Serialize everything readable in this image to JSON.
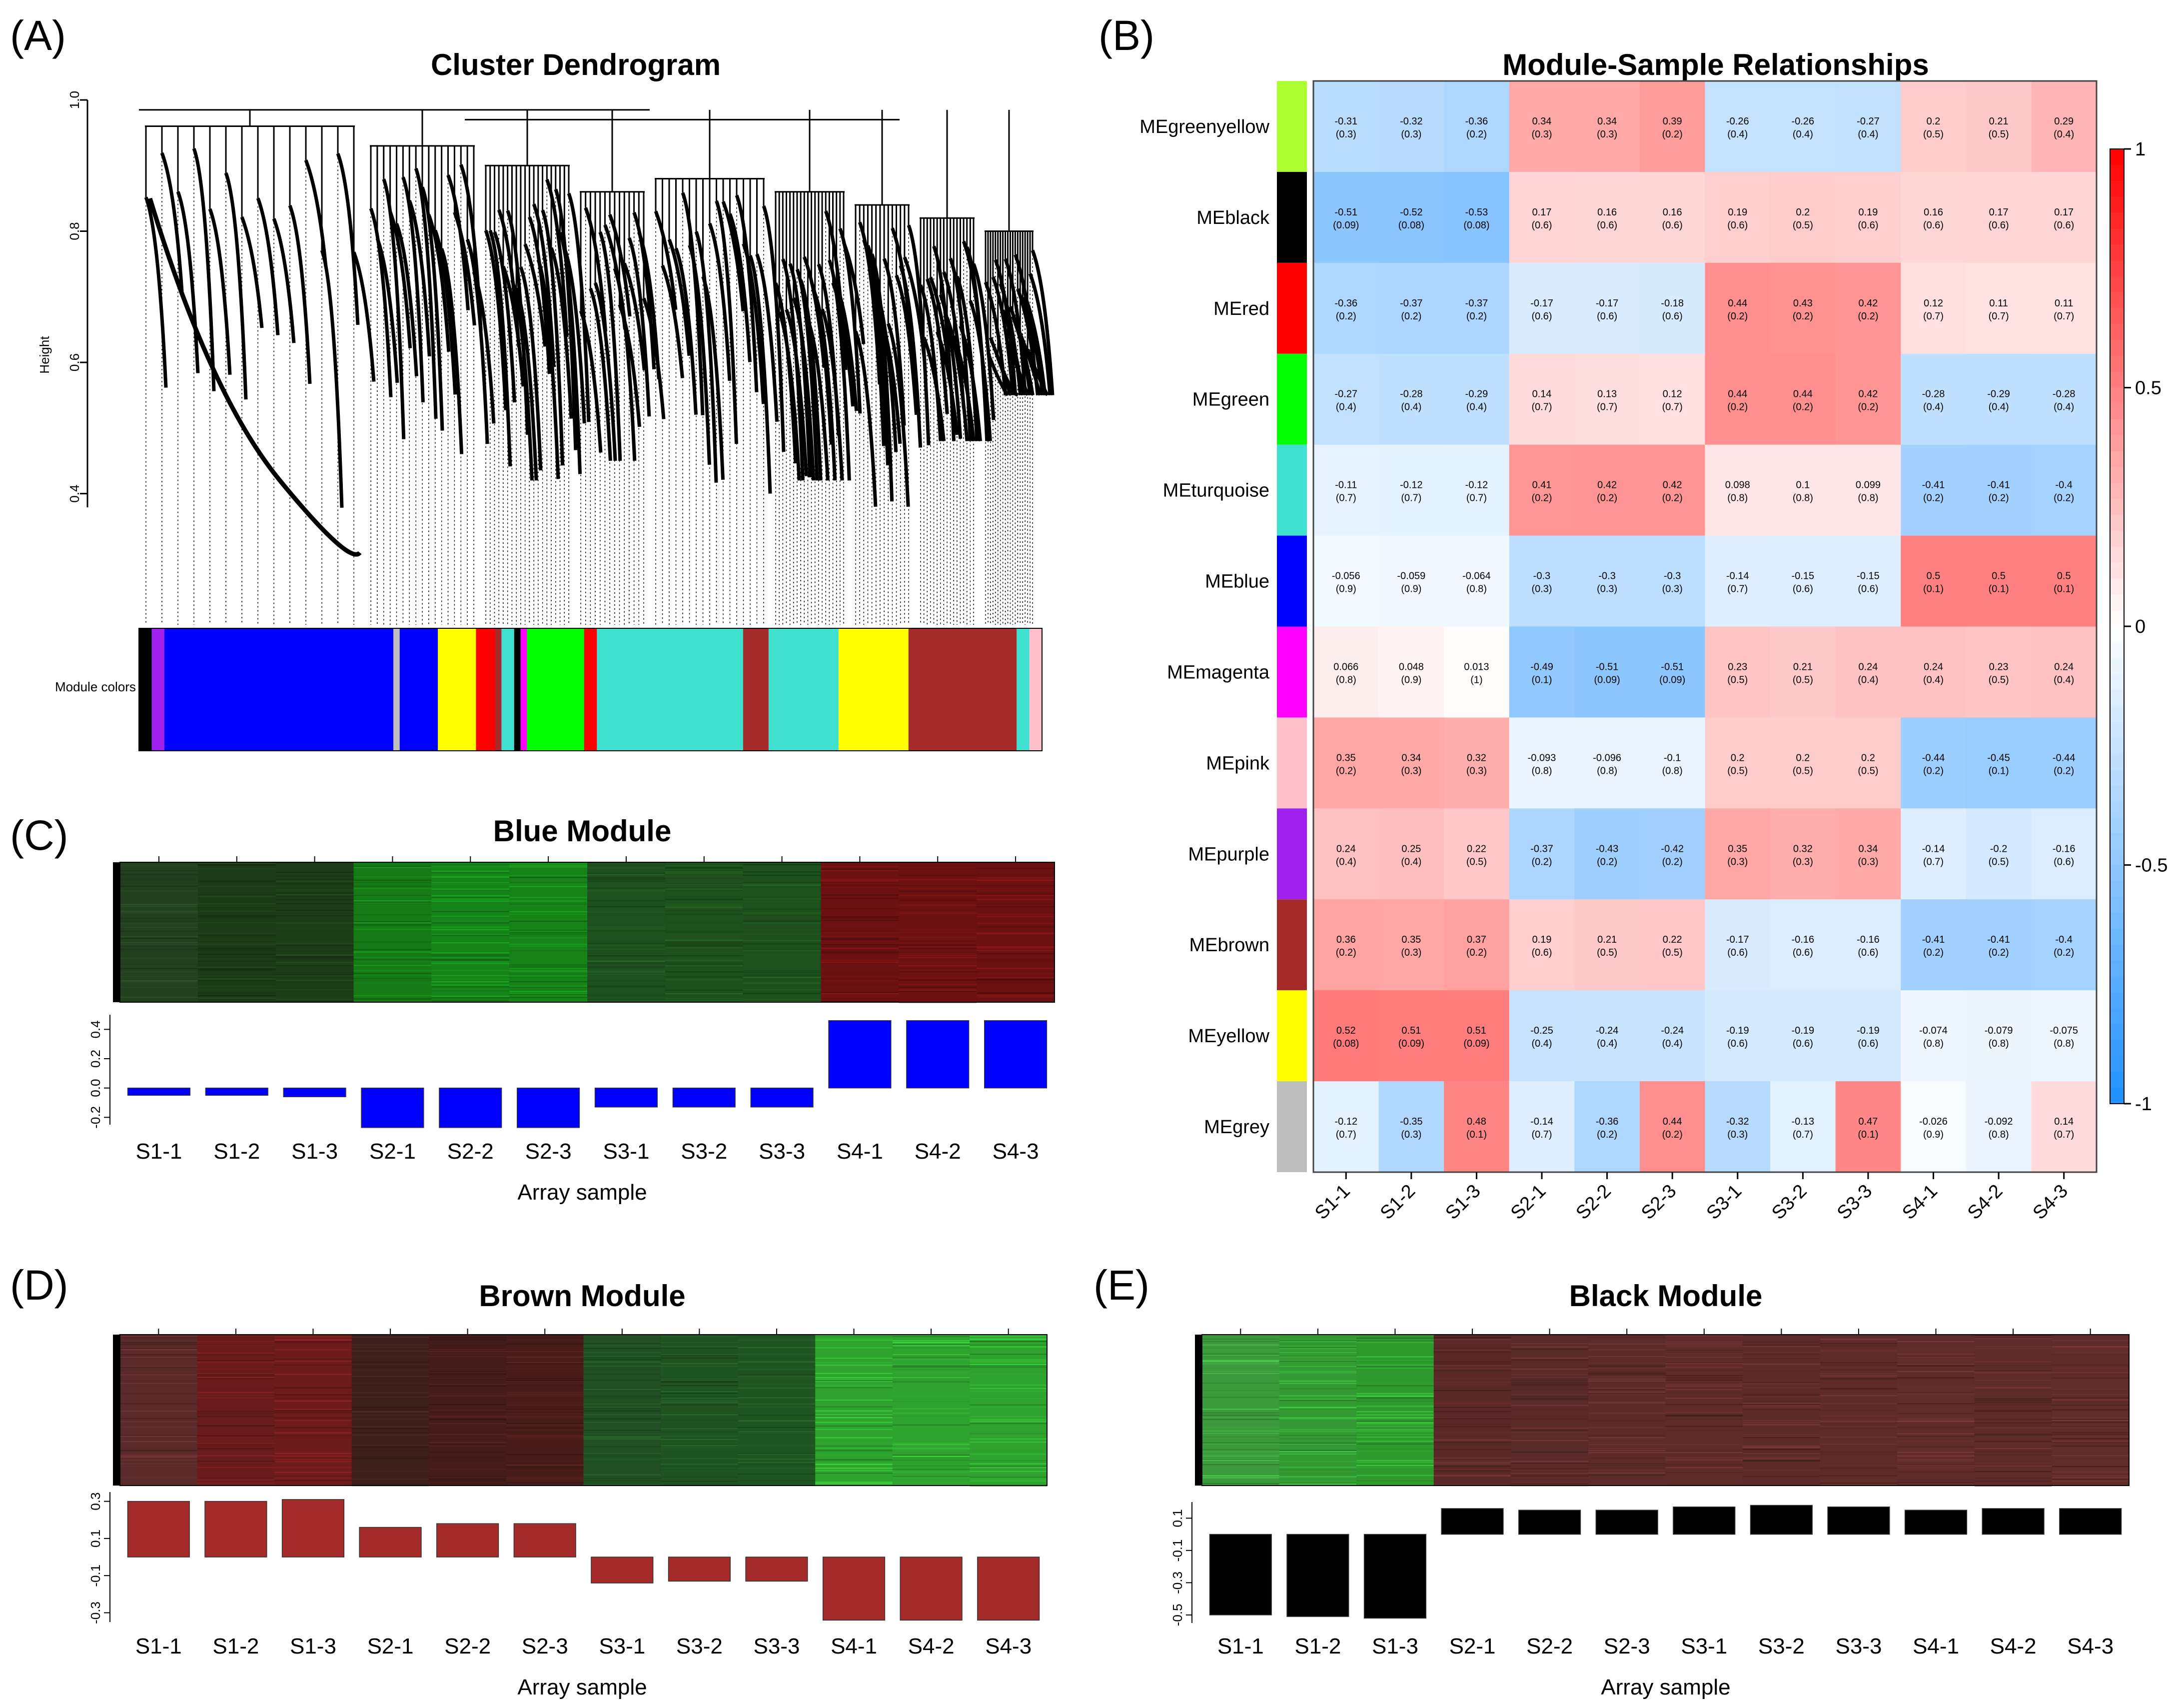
{
  "panel_labels": [
    "(A)",
    "(B)",
    "(C)",
    "(D)",
    "(E)"
  ],
  "chart_data": [
    {
      "id": "A",
      "type": "dendrogram",
      "title": "Cluster Dendrogram",
      "ylabel": "Height",
      "ylim": [
        0.2,
        1.0
      ],
      "yticks": [
        "0.4",
        "0.6",
        "0.8",
        "1.0"
      ],
      "colorbar_label": "Module colors",
      "module_color_strip": [
        {
          "color": "#000000",
          "weight": 2
        },
        {
          "color": "#a020f0",
          "weight": 2
        },
        {
          "color": "#0000ff",
          "weight": 36
        },
        {
          "color": "#bebebe",
          "weight": 1
        },
        {
          "color": "#0000ff",
          "weight": 6
        },
        {
          "color": "#ffff00",
          "weight": 6
        },
        {
          "color": "#ff0000",
          "weight": 3
        },
        {
          "color": "#a52a2a",
          "weight": 1
        },
        {
          "color": "#40e0d0",
          "weight": 2
        },
        {
          "color": "#000000",
          "weight": 1
        },
        {
          "color": "#ff00ff",
          "weight": 1
        },
        {
          "color": "#00ff00",
          "weight": 9
        },
        {
          "color": "#ff0000",
          "weight": 2
        },
        {
          "color": "#40e0d0",
          "weight": 23
        },
        {
          "color": "#a52a2a",
          "weight": 4
        },
        {
          "color": "#40e0d0",
          "weight": 11
        },
        {
          "color": "#ffff00",
          "weight": 11
        },
        {
          "color": "#a52a2a",
          "weight": 17
        },
        {
          "color": "#40e0d0",
          "weight": 2
        },
        {
          "color": "#ffc0cb",
          "weight": 2
        }
      ]
    },
    {
      "id": "B",
      "type": "heatmap",
      "title": "Module-Sample Relationships",
      "rows": [
        "MEgreenyellow",
        "MEblack",
        "MEred",
        "MEgreen",
        "MEturquoise",
        "MEblue",
        "MEmagenta",
        "MEpink",
        "MEpurple",
        "MEbrown",
        "MEyellow",
        "MEgrey"
      ],
      "row_colors": [
        "#adff2f",
        "#000000",
        "#ff0000",
        "#00ff00",
        "#40e0d0",
        "#0000ff",
        "#ff00ff",
        "#ffc0cb",
        "#a020f0",
        "#a52a2a",
        "#ffff00",
        "#bebebe"
      ],
      "columns": [
        "S1-1",
        "S1-2",
        "S1-3",
        "S2-1",
        "S2-2",
        "S2-3",
        "S3-1",
        "S3-2",
        "S3-3",
        "S4-1",
        "S4-2",
        "S4-3"
      ],
      "values": [
        [
          -0.31,
          -0.32,
          -0.36,
          0.34,
          0.34,
          0.39,
          -0.26,
          -0.26,
          -0.27,
          0.2,
          0.21,
          0.29
        ],
        [
          -0.51,
          -0.52,
          -0.53,
          0.17,
          0.16,
          0.16,
          0.19,
          0.2,
          0.19,
          0.16,
          0.17,
          0.17
        ],
        [
          -0.36,
          -0.37,
          -0.37,
          -0.17,
          -0.17,
          -0.18,
          0.44,
          0.43,
          0.42,
          0.12,
          0.11,
          0.11
        ],
        [
          -0.27,
          -0.28,
          -0.29,
          0.14,
          0.13,
          0.12,
          0.44,
          0.44,
          0.42,
          -0.28,
          -0.29,
          -0.28
        ],
        [
          -0.11,
          -0.12,
          -0.12,
          0.41,
          0.42,
          0.42,
          0.098,
          0.1,
          0.099,
          -0.41,
          -0.41,
          -0.4
        ],
        [
          -0.056,
          -0.059,
          -0.064,
          -0.3,
          -0.3,
          -0.3,
          -0.14,
          -0.15,
          -0.15,
          0.5,
          0.5,
          0.5
        ],
        [
          0.066,
          0.048,
          0.013,
          -0.49,
          -0.51,
          -0.51,
          0.23,
          0.21,
          0.24,
          0.24,
          0.23,
          0.24
        ],
        [
          0.35,
          0.34,
          0.32,
          -0.093,
          -0.096,
          -0.1,
          0.2,
          0.2,
          0.2,
          -0.44,
          -0.45,
          -0.44
        ],
        [
          0.24,
          0.25,
          0.22,
          -0.37,
          -0.43,
          -0.42,
          0.35,
          0.32,
          0.34,
          -0.14,
          -0.2,
          -0.16
        ],
        [
          0.36,
          0.35,
          0.37,
          0.19,
          0.21,
          0.22,
          -0.17,
          -0.16,
          -0.16,
          -0.41,
          -0.41,
          -0.4
        ],
        [
          0.52,
          0.51,
          0.51,
          -0.25,
          -0.24,
          -0.24,
          -0.19,
          -0.19,
          -0.19,
          -0.074,
          -0.079,
          -0.075
        ],
        [
          -0.12,
          -0.35,
          0.48,
          -0.14,
          -0.36,
          0.44,
          -0.32,
          -0.13,
          0.47,
          -0.026,
          -0.092,
          0.14
        ]
      ],
      "labels": [
        [
          "-0.31",
          "-0.32",
          "-0.36",
          "0.34",
          "0.34",
          "0.39",
          "-0.26",
          "-0.26",
          "-0.27",
          "0.2",
          "0.21",
          "0.29"
        ],
        [
          "-0.51",
          "-0.52",
          "-0.53",
          "0.17",
          "0.16",
          "0.16",
          "0.19",
          "0.2",
          "0.19",
          "0.16",
          "0.17",
          "0.17"
        ],
        [
          "-0.36",
          "-0.37",
          "-0.37",
          "-0.17",
          "-0.17",
          "-0.18",
          "0.44",
          "0.43",
          "0.42",
          "0.12",
          "0.11",
          "0.11"
        ],
        [
          "-0.27",
          "-0.28",
          "-0.29",
          "0.14",
          "0.13",
          "0.12",
          "0.44",
          "0.44",
          "0.42",
          "-0.28",
          "-0.29",
          "-0.28"
        ],
        [
          "-0.11",
          "-0.12",
          "-0.12",
          "0.41",
          "0.42",
          "0.42",
          "0.098",
          "0.1",
          "0.099",
          "-0.41",
          "-0.41",
          "-0.4"
        ],
        [
          "-0.056",
          "-0.059",
          "-0.064",
          "-0.3",
          "-0.3",
          "-0.3",
          "-0.14",
          "-0.15",
          "-0.15",
          "0.5",
          "0.5",
          "0.5"
        ],
        [
          "0.066",
          "0.048",
          "0.013",
          "-0.49",
          "-0.51",
          "-0.51",
          "0.23",
          "0.21",
          "0.24",
          "0.24",
          "0.23",
          "0.24"
        ],
        [
          "0.35",
          "0.34",
          "0.32",
          "-0.093",
          "-0.096",
          "-0.1",
          "0.2",
          "0.2",
          "0.2",
          "-0.44",
          "-0.45",
          "-0.44"
        ],
        [
          "0.24",
          "0.25",
          "0.22",
          "-0.37",
          "-0.43",
          "-0.42",
          "0.35",
          "0.32",
          "0.34",
          "-0.14",
          "-0.2",
          "-0.16"
        ],
        [
          "0.36",
          "0.35",
          "0.37",
          "0.19",
          "0.21",
          "0.22",
          "-0.17",
          "-0.16",
          "-0.16",
          "-0.41",
          "-0.41",
          "-0.4"
        ],
        [
          "0.52",
          "0.51",
          "0.51",
          "-0.25",
          "-0.24",
          "-0.24",
          "-0.19",
          "-0.19",
          "-0.19",
          "-0.074",
          "-0.079",
          "-0.075"
        ],
        [
          "-0.12",
          "-0.35",
          "0.48",
          "-0.14",
          "-0.36",
          "0.44",
          "-0.32",
          "-0.13",
          "0.47",
          "-0.026",
          "-0.092",
          "0.14"
        ]
      ],
      "pvalues": [
        [
          "(0.3)",
          "(0.3)",
          "(0.2)",
          "(0.3)",
          "(0.3)",
          "(0.2)",
          "(0.4)",
          "(0.4)",
          "(0.4)",
          "(0.5)",
          "(0.5)",
          "(0.4)"
        ],
        [
          "(0.09)",
          "(0.08)",
          "(0.08)",
          "(0.6)",
          "(0.6)",
          "(0.6)",
          "(0.6)",
          "(0.5)",
          "(0.6)",
          "(0.6)",
          "(0.6)",
          "(0.6)"
        ],
        [
          "(0.2)",
          "(0.2)",
          "(0.2)",
          "(0.6)",
          "(0.6)",
          "(0.6)",
          "(0.2)",
          "(0.2)",
          "(0.2)",
          "(0.7)",
          "(0.7)",
          "(0.7)"
        ],
        [
          "(0.4)",
          "(0.4)",
          "(0.4)",
          "(0.7)",
          "(0.7)",
          "(0.7)",
          "(0.2)",
          "(0.2)",
          "(0.2)",
          "(0.4)",
          "(0.4)",
          "(0.4)"
        ],
        [
          "(0.7)",
          "(0.7)",
          "(0.7)",
          "(0.2)",
          "(0.2)",
          "(0.2)",
          "(0.8)",
          "(0.8)",
          "(0.8)",
          "(0.2)",
          "(0.2)",
          "(0.2)"
        ],
        [
          "(0.9)",
          "(0.9)",
          "(0.8)",
          "(0.3)",
          "(0.3)",
          "(0.3)",
          "(0.7)",
          "(0.6)",
          "(0.6)",
          "(0.1)",
          "(0.1)",
          "(0.1)"
        ],
        [
          "(0.8)",
          "(0.9)",
          "(1)",
          "(0.1)",
          "(0.09)",
          "(0.09)",
          "(0.5)",
          "(0.5)",
          "(0.4)",
          "(0.4)",
          "(0.5)",
          "(0.4)"
        ],
        [
          "(0.2)",
          "(0.3)",
          "(0.3)",
          "(0.8)",
          "(0.8)",
          "(0.8)",
          "(0.5)",
          "(0.5)",
          "(0.5)",
          "(0.2)",
          "(0.1)",
          "(0.2)"
        ],
        [
          "(0.4)",
          "(0.4)",
          "(0.5)",
          "(0.2)",
          "(0.2)",
          "(0.2)",
          "(0.3)",
          "(0.3)",
          "(0.3)",
          "(0.7)",
          "(0.5)",
          "(0.6)"
        ],
        [
          "(0.2)",
          "(0.3)",
          "(0.2)",
          "(0.6)",
          "(0.5)",
          "(0.5)",
          "(0.6)",
          "(0.6)",
          "(0.6)",
          "(0.2)",
          "(0.2)",
          "(0.2)"
        ],
        [
          "(0.08)",
          "(0.09)",
          "(0.09)",
          "(0.4)",
          "(0.4)",
          "(0.4)",
          "(0.6)",
          "(0.6)",
          "(0.6)",
          "(0.8)",
          "(0.8)",
          "(0.8)"
        ],
        [
          "(0.7)",
          "(0.3)",
          "(0.1)",
          "(0.7)",
          "(0.2)",
          "(0.2)",
          "(0.3)",
          "(0.7)",
          "(0.1)",
          "(0.9)",
          "(0.8)",
          "(0.7)"
        ]
      ],
      "colorscale": {
        "min": -1,
        "max": 1,
        "low": "#1e90ff",
        "mid": "#ffffff",
        "high": "#ff0000"
      },
      "colorbar_ticks": [
        "1",
        "0.5",
        "0",
        "-0.5",
        "-1"
      ]
    },
    {
      "id": "C",
      "type": "bar",
      "title": "Blue Module",
      "xlabel": "Array sample",
      "categories": [
        "S1-1",
        "S1-2",
        "S1-3",
        "S2-1",
        "S2-2",
        "S2-3",
        "S3-1",
        "S3-2",
        "S3-3",
        "S4-1",
        "S4-2",
        "S4-3"
      ],
      "values": [
        -0.05,
        -0.05,
        -0.06,
        -0.27,
        -0.27,
        -0.27,
        -0.13,
        -0.13,
        -0.13,
        0.46,
        0.46,
        0.46
      ],
      "ylim": [
        -0.25,
        0.5
      ],
      "yticks": [
        "0.4",
        "0.2",
        "0.0",
        "-0.2"
      ],
      "bar_color": "#0000ff",
      "heatmap_colors": [
        "#23401f",
        "#1b3a16",
        "#1c3c17",
        "#167a17",
        "#168318",
        "#168318",
        "#1e4f1e",
        "#1d501c",
        "#1d501c",
        "#6b1111",
        "#6b1111",
        "#6b1111"
      ]
    },
    {
      "id": "D",
      "type": "bar",
      "title": "Brown Module",
      "xlabel": "Array sample",
      "categories": [
        "S1-1",
        "S1-2",
        "S1-3",
        "S2-1",
        "S2-2",
        "S2-3",
        "S3-1",
        "S3-2",
        "S3-3",
        "S4-1",
        "S4-2",
        "S4-3"
      ],
      "values": [
        0.3,
        0.3,
        0.31,
        0.16,
        0.18,
        0.18,
        -0.14,
        -0.13,
        -0.13,
        -0.34,
        -0.34,
        -0.34
      ],
      "ylim": [
        -0.35,
        0.35
      ],
      "yticks": [
        "0.3",
        "0.1",
        "-0.1",
        "-0.3"
      ],
      "bar_color": "#a52a2a",
      "heatmap_colors": [
        "#5a2a2a",
        "#6a1c1c",
        "#6e1b1b",
        "#3d1f1c",
        "#431c1b",
        "#471c1b",
        "#1f4f22",
        "#1f5322",
        "#1f5522",
        "#2ea32e",
        "#2ea32e",
        "#2ea32e"
      ]
    },
    {
      "id": "E",
      "type": "bar",
      "title": "Black Module",
      "xlabel": "Array sample",
      "categories": [
        "S1-1",
        "S1-2",
        "S1-3",
        "S2-1",
        "S2-2",
        "S2-3",
        "S3-1",
        "S3-2",
        "S3-3",
        "S4-1",
        "S4-2",
        "S4-3"
      ],
      "values": [
        -0.5,
        -0.51,
        -0.52,
        0.16,
        0.15,
        0.15,
        0.17,
        0.18,
        0.17,
        0.15,
        0.16,
        0.16
      ],
      "ylim": [
        -0.55,
        0.2
      ],
      "yticks": [
        "0.1",
        "-0.1",
        "-0.3",
        "-0.5"
      ],
      "bar_color": "#000000",
      "heatmap_colors": [
        "#3b9a3b",
        "#339a33",
        "#2e9a2e",
        "#5a2828",
        "#5a2a2a",
        "#5c2a2a",
        "#5e2a2a",
        "#5c2a2a",
        "#5e2a2a",
        "#602b2b",
        "#5e2a2a",
        "#602b2b"
      ]
    }
  ]
}
